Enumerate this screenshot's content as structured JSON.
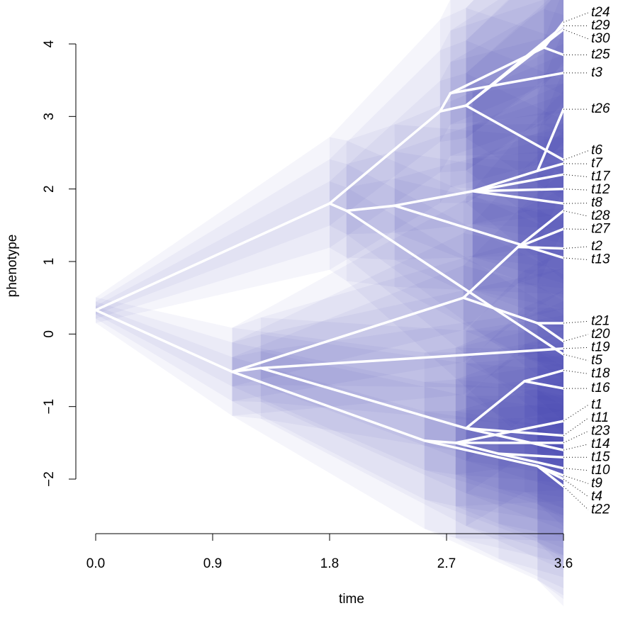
{
  "chart_data": {
    "type": "phenogram",
    "x_label": "time",
    "y_label": "phenotype",
    "xlim": [
      0,
      3.6
    ],
    "ylim": [
      -2,
      4
    ],
    "xticks": [
      {
        "value": 0,
        "label": "0.0"
      },
      0.9,
      1.8,
      2.7,
      3.6
    ],
    "yticks": [
      {
        "value": -2,
        "label": "−2"
      },
      {
        "value": -1,
        "label": "−1"
      },
      0,
      1,
      2,
      3,
      4
    ],
    "line_color": "#ffffff",
    "uncertainty_color": "#3c3caa",
    "edges": [
      {
        "x": [
          0,
          1.8
        ],
        "y": [
          0.33,
          1.8
        ]
      },
      {
        "x": [
          0,
          1.05
        ],
        "y": [
          0.33,
          -0.52
        ]
      },
      {
        "x": [
          1.8,
          2.65
        ],
        "y": [
          1.8,
          3.07
        ]
      },
      {
        "x": [
          1.8,
          1.93
        ],
        "y": [
          1.8,
          1.7
        ]
      },
      {
        "x": [
          2.65,
          2.73
        ],
        "y": [
          3.07,
          3.32
        ]
      },
      {
        "x": [
          2.65,
          2.85
        ],
        "y": [
          3.07,
          3.15
        ]
      },
      {
        "x": [
          2.73,
          3.6
        ],
        "y": [
          3.32,
          3.6
        ]
      },
      {
        "x": [
          2.73,
          3.45
        ],
        "y": [
          3.32,
          3.95
        ]
      },
      {
        "x": [
          3.45,
          3.6
        ],
        "y": [
          3.95,
          4.3
        ]
      },
      {
        "x": [
          3.45,
          3.6
        ],
        "y": [
          3.95,
          3.85
        ]
      },
      {
        "x": [
          2.85,
          3.6
        ],
        "y": [
          3.15,
          4.25
        ]
      },
      {
        "x": [
          2.85,
          3.6
        ],
        "y": [
          3.15,
          4.2
        ]
      },
      {
        "x": [
          2.85,
          3.6
        ],
        "y": [
          3.15,
          2.4
        ]
      },
      {
        "x": [
          1.93,
          2.3
        ],
        "y": [
          1.7,
          1.77
        ]
      },
      {
        "x": [
          1.93,
          3.6
        ],
        "y": [
          1.7,
          -0.28
        ]
      },
      {
        "x": [
          2.3,
          2.9
        ],
        "y": [
          1.77,
          1.97
        ]
      },
      {
        "x": [
          2.3,
          3.6
        ],
        "y": [
          1.77,
          1.05
        ]
      },
      {
        "x": [
          2.9,
          3.4
        ],
        "y": [
          1.97,
          2.25
        ]
      },
      {
        "x": [
          3.4,
          3.6
        ],
        "y": [
          2.25,
          3.1
        ]
      },
      {
        "x": [
          3.4,
          3.6
        ],
        "y": [
          2.25,
          2.35
        ]
      },
      {
        "x": [
          2.9,
          3.6
        ],
        "y": [
          1.97,
          2.2
        ]
      },
      {
        "x": [
          2.9,
          3.6
        ],
        "y": [
          1.97,
          2.0
        ]
      },
      {
        "x": [
          2.9,
          3.6
        ],
        "y": [
          1.97,
          1.8
        ]
      },
      {
        "x": [
          1.05,
          1.27
        ],
        "y": [
          -0.52,
          -0.47
        ]
      },
      {
        "x": [
          1.05,
          2.83
        ],
        "y": [
          -0.52,
          0.5
        ]
      },
      {
        "x": [
          2.83,
          3.25
        ],
        "y": [
          0.5,
          1.2
        ]
      },
      {
        "x": [
          3.25,
          3.6
        ],
        "y": [
          1.2,
          1.45
        ]
      },
      {
        "x": [
          3.25,
          3.6
        ],
        "y": [
          1.2,
          1.7
        ]
      },
      {
        "x": [
          3.25,
          3.6
        ],
        "y": [
          1.2,
          1.18
        ]
      },
      {
        "x": [
          2.83,
          3.4
        ],
        "y": [
          0.5,
          0.15
        ]
      },
      {
        "x": [
          3.4,
          3.6
        ],
        "y": [
          0.15,
          0.15
        ]
      },
      {
        "x": [
          3.4,
          3.6
        ],
        "y": [
          0.15,
          -0.1
        ]
      },
      {
        "x": [
          1.27,
          3.6
        ],
        "y": [
          -0.47,
          -0.2
        ]
      },
      {
        "x": [
          1.27,
          2.85
        ],
        "y": [
          -0.47,
          -1.3
        ]
      },
      {
        "x": [
          2.85,
          3.3
        ],
        "y": [
          -1.3,
          -0.65
        ]
      },
      {
        "x": [
          3.3,
          3.6
        ],
        "y": [
          -0.65,
          -0.5
        ]
      },
      {
        "x": [
          3.3,
          3.6
        ],
        "y": [
          -0.65,
          -0.75
        ]
      },
      {
        "x": [
          2.85,
          3.6
        ],
        "y": [
          -1.3,
          -1.4
        ]
      },
      {
        "x": [
          2.85,
          3.6
        ],
        "y": [
          -1.3,
          -1.6
        ]
      },
      {
        "x": [
          1.05,
          2.53
        ],
        "y": [
          -0.52,
          -1.47
        ]
      },
      {
        "x": [
          2.53,
          2.77
        ],
        "y": [
          -1.47,
          -1.5
        ]
      },
      {
        "x": [
          2.77,
          3.6
        ],
        "y": [
          -1.5,
          -1.2
        ]
      },
      {
        "x": [
          2.77,
          3.6
        ],
        "y": [
          -1.5,
          -1.5
        ]
      },
      {
        "x": [
          2.77,
          3.1
        ],
        "y": [
          -1.5,
          -1.65
        ]
      },
      {
        "x": [
          3.1,
          3.6
        ],
        "y": [
          -1.65,
          -1.7
        ]
      },
      {
        "x": [
          3.1,
          3.6
        ],
        "y": [
          -1.65,
          -1.85
        ]
      },
      {
        "x": [
          2.53,
          3.4
        ],
        "y": [
          -1.47,
          -1.82
        ]
      },
      {
        "x": [
          3.4,
          3.6
        ],
        "y": [
          -1.82,
          -1.95
        ]
      },
      {
        "x": [
          3.4,
          3.6
        ],
        "y": [
          -1.82,
          -2.0
        ]
      },
      {
        "x": [
          3.4,
          3.6
        ],
        "y": [
          -1.82,
          -2.1
        ]
      }
    ],
    "tips": [
      {
        "label": "t24",
        "value": 4.3
      },
      {
        "label": "t29",
        "value": 4.25
      },
      {
        "label": "t30",
        "value": 4.2
      },
      {
        "label": "t25",
        "value": 3.85
      },
      {
        "label": "t3",
        "value": 3.6
      },
      {
        "label": "t26",
        "value": 3.1
      },
      {
        "label": "t6",
        "value": 2.4
      },
      {
        "label": "t7",
        "value": 2.35
      },
      {
        "label": "t17",
        "value": 2.2
      },
      {
        "label": "t12",
        "value": 2.0
      },
      {
        "label": "t8",
        "value": 1.8
      },
      {
        "label": "t28",
        "value": 1.7
      },
      {
        "label": "t27",
        "value": 1.45
      },
      {
        "label": "t2",
        "value": 1.18
      },
      {
        "label": "t13",
        "value": 1.05
      },
      {
        "label": "t21",
        "value": 0.15
      },
      {
        "label": "t20",
        "value": -0.1
      },
      {
        "label": "t19",
        "value": -0.2
      },
      {
        "label": "t5",
        "value": -0.28
      },
      {
        "label": "t18",
        "value": -0.5
      },
      {
        "label": "t16",
        "value": -0.75
      },
      {
        "label": "t1",
        "value": -1.2
      },
      {
        "label": "t11",
        "value": -1.4
      },
      {
        "label": "t23",
        "value": -1.5
      },
      {
        "label": "t14",
        "value": -1.6
      },
      {
        "label": "t15",
        "value": -1.7
      },
      {
        "label": "t10",
        "value": -1.85
      },
      {
        "label": "t9",
        "value": -1.95
      },
      {
        "label": "t4",
        "value": -2.0
      },
      {
        "label": "t22",
        "value": -2.1
      }
    ]
  }
}
